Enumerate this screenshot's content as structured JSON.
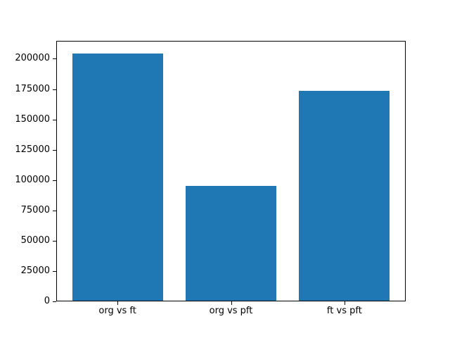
{
  "chart_data": {
    "type": "bar",
    "categories": [
      "org vs ft",
      "org vs pft",
      "ft vs pft"
    ],
    "values": [
      204600,
      95300,
      173600
    ],
    "title": "",
    "xlabel": "",
    "ylabel": "",
    "ylim": [
      0,
      214800
    ],
    "xlim": [
      -0.54,
      2.54
    ],
    "bar_width": 0.8,
    "bar_color": "#1f77b4",
    "frame_color": "#000000",
    "background_color": "#ffffff",
    "yticks": [
      0,
      25000,
      50000,
      75000,
      100000,
      125000,
      150000,
      175000,
      200000
    ],
    "ytick_labels": [
      "0",
      "25000",
      "50000",
      "75000",
      "100000",
      "125000",
      "150000",
      "175000",
      "200000"
    ],
    "grid": false,
    "legend": null
  }
}
